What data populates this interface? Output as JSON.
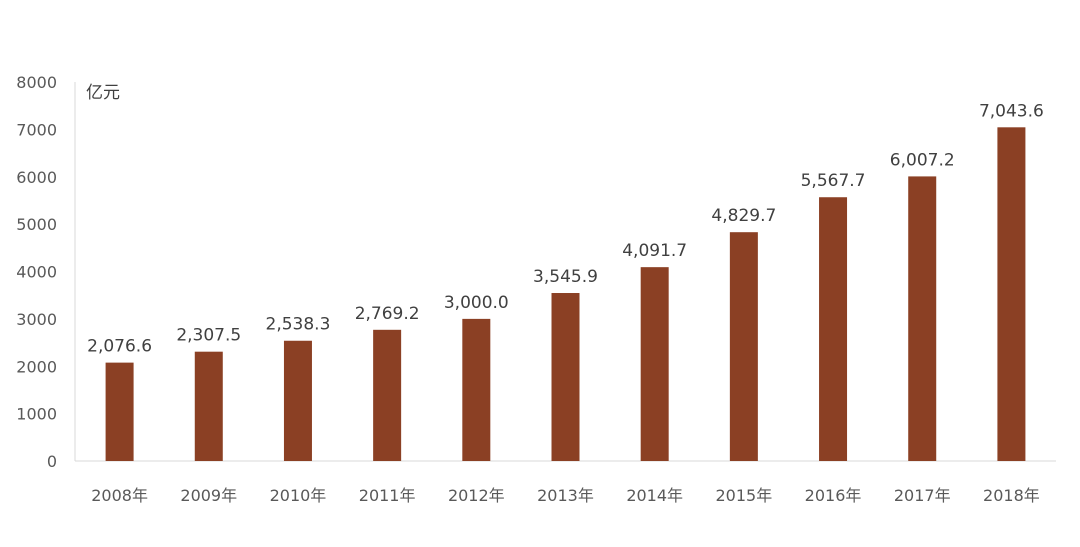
{
  "chart_data": {
    "type": "bar",
    "categories": [
      "2008年",
      "2009年",
      "2010年",
      "2011年",
      "2012年",
      "2013年",
      "2014年",
      "2015年",
      "2016年",
      "2017年",
      "2018年"
    ],
    "values": [
      2076.6,
      2307.5,
      2538.3,
      2769.2,
      3000.0,
      3545.9,
      4091.7,
      4829.7,
      5567.7,
      6007.2,
      7043.6
    ],
    "data_labels": [
      "2,076.6",
      "2,307.5",
      "2,538.3",
      "2,769.2",
      "3,000.0",
      "3,545.9",
      "4,091.7",
      "4,829.7",
      "5,567.7",
      "6,007.2",
      "7,043.6"
    ],
    "unit_label": "亿元",
    "ylim": [
      0,
      8000
    ],
    "yticks": [
      0,
      1000,
      2000,
      3000,
      4000,
      5000,
      6000,
      7000,
      8000
    ],
    "grid": false,
    "bar_color": "#8B4024",
    "axis_color": "#D9D9D9"
  }
}
